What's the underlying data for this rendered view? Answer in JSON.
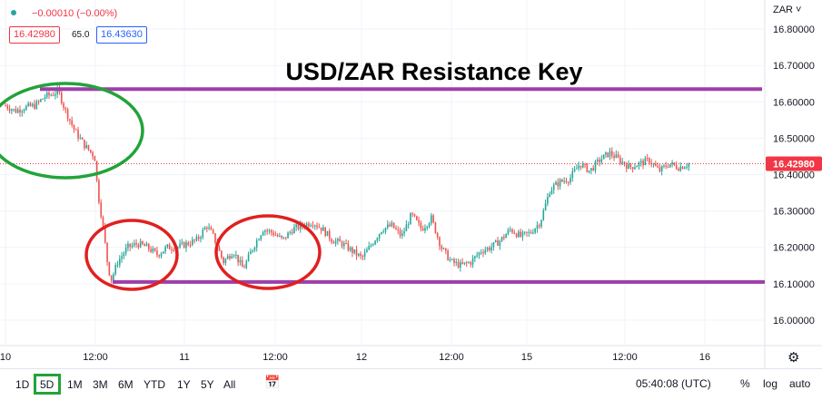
{
  "header": {
    "change": "−0.00010 (−0.00%)",
    "bid": "16.42980",
    "spread": "65.0",
    "ask": "16.43630",
    "currency": "ZAR"
  },
  "toolbar": {
    "ranges": [
      "1D",
      "5D",
      "1M",
      "3M",
      "6M",
      "YTD",
      "1Y",
      "5Y",
      "All"
    ],
    "selected_range": "5D",
    "time": "05:40:08 (UTC)",
    "percent": "%",
    "log": "log",
    "auto": "auto",
    "icons": [
      "calendar-icon",
      "gear-icon"
    ]
  },
  "chart_data": {
    "type": "candlestick",
    "title": "USD/ZAR Resistance Key",
    "xlabel": "",
    "ylabel": "",
    "x_ticks": [
      "10",
      "12:00",
      "11",
      "12:00",
      "12",
      "12:00",
      "15",
      "12:00",
      "16"
    ],
    "y_ticks": [
      "16.80000",
      "16.70000",
      "16.60000",
      "16.50000",
      "16.40000",
      "16.30000",
      "16.20000",
      "16.10000",
      "16.00000"
    ],
    "ylim": [
      15.93,
      16.88
    ],
    "current_price": "16.42980",
    "current_price_value": 16.4298,
    "resistance_level": 16.635,
    "support_level": 16.105,
    "price_path": [
      [
        0,
        16.59
      ],
      [
        0.03,
        16.575
      ],
      [
        0.06,
        16.585
      ],
      [
        0.09,
        16.59
      ],
      [
        0.12,
        16.615
      ],
      [
        0.14,
        16.62
      ],
      [
        0.16,
        16.63
      ],
      [
        0.18,
        16.58
      ],
      [
        0.21,
        16.52
      ],
      [
        0.24,
        16.48
      ],
      [
        0.27,
        16.45
      ],
      [
        0.28,
        16.35
      ],
      [
        0.295,
        16.26
      ],
      [
        0.31,
        16.15
      ],
      [
        0.32,
        16.11
      ],
      [
        0.34,
        16.16
      ],
      [
        0.37,
        16.2
      ],
      [
        0.4,
        16.21
      ],
      [
        0.43,
        16.2
      ],
      [
        0.46,
        16.18
      ],
      [
        0.49,
        16.2
      ],
      [
        0.52,
        16.2
      ],
      [
        0.55,
        16.21
      ],
      [
        0.58,
        16.22
      ],
      [
        0.61,
        16.26
      ],
      [
        0.63,
        16.23
      ],
      [
        0.66,
        16.16
      ],
      [
        0.69,
        16.19
      ],
      [
        0.72,
        16.14
      ],
      [
        0.75,
        16.2
      ],
      [
        0.78,
        16.25
      ],
      [
        0.81,
        16.24
      ],
      [
        0.84,
        16.22
      ],
      [
        0.87,
        16.25
      ],
      [
        0.9,
        16.26
      ],
      [
        0.93,
        16.27
      ],
      [
        0.96,
        16.25
      ],
      [
        0.99,
        16.22
      ],
      [
        1.02,
        16.21
      ],
      [
        1.05,
        16.19
      ],
      [
        1.08,
        16.17
      ],
      [
        1.11,
        16.21
      ],
      [
        1.14,
        16.25
      ],
      [
        1.17,
        16.26
      ],
      [
        1.2,
        16.23
      ],
      [
        1.23,
        16.29
      ],
      [
        1.26,
        16.25
      ],
      [
        1.29,
        16.28
      ],
      [
        1.32,
        16.2
      ],
      [
        1.35,
        16.16
      ],
      [
        1.38,
        16.15
      ],
      [
        1.41,
        16.16
      ],
      [
        1.44,
        16.19
      ],
      [
        1.47,
        16.2
      ],
      [
        1.5,
        16.22
      ],
      [
        1.53,
        16.25
      ],
      [
        1.56,
        16.23
      ],
      [
        1.59,
        16.24
      ],
      [
        1.62,
        16.27
      ],
      [
        1.65,
        16.36
      ],
      [
        1.68,
        16.38
      ],
      [
        1.71,
        16.39
      ],
      [
        1.74,
        16.43
      ],
      [
        1.77,
        16.41
      ],
      [
        1.8,
        16.44
      ],
      [
        1.83,
        16.46
      ],
      [
        1.86,
        16.44
      ],
      [
        1.89,
        16.42
      ],
      [
        1.92,
        16.43
      ],
      [
        1.95,
        16.44
      ],
      [
        1.98,
        16.41
      ],
      [
        2.01,
        16.43
      ],
      [
        2.04,
        16.42
      ],
      [
        2.07,
        16.43
      ]
    ],
    "annotations": [
      {
        "shape": "ellipse",
        "color": "#22a33a",
        "around": "early high"
      },
      {
        "shape": "ellipse",
        "color": "#e02020",
        "around": "first low"
      },
      {
        "shape": "ellipse",
        "color": "#e02020",
        "around": "second low"
      }
    ],
    "colors": {
      "up": "#26a69a",
      "down": "#ef5350",
      "resistance": "#9c3fa8",
      "support": "#9c3fa8",
      "price_label": "#f23645"
    }
  }
}
